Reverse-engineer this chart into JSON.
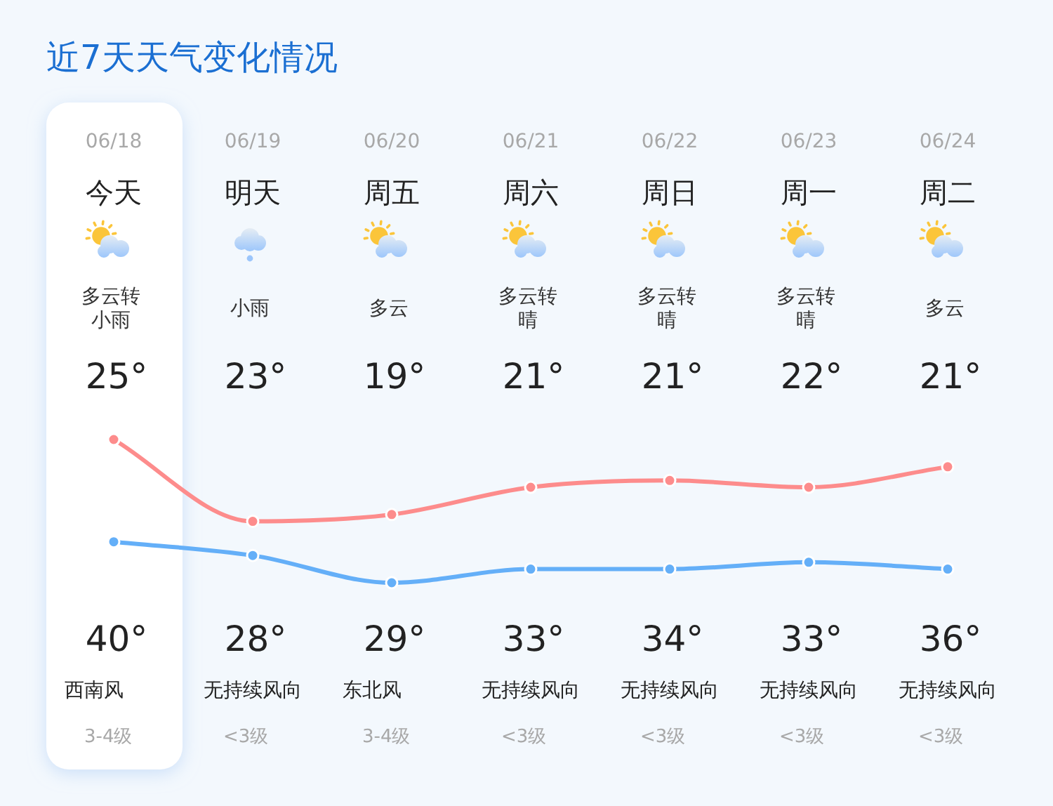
{
  "chart_data": {
    "type": "line",
    "title": "近7天天气变化情况",
    "categories": [
      "06/18",
      "06/19",
      "06/20",
      "06/21",
      "06/22",
      "06/23",
      "06/24"
    ],
    "series": [
      {
        "color": "#fd8c8c",
        "values": [
          40,
          28,
          29,
          33,
          34,
          33,
          36
        ],
        "value_labels": [
          "40°",
          "28°",
          "29°",
          "33°",
          "34°",
          "33°",
          "36°"
        ]
      },
      {
        "color": "#64aff8",
        "values": [
          25,
          23,
          19,
          21,
          21,
          22,
          21
        ],
        "value_labels": [
          "25°",
          "23°",
          "19°",
          "21°",
          "21°",
          "22°",
          "21°"
        ]
      }
    ],
    "marker": "circle",
    "bands": [
      {
        "axis": "x",
        "from": "06/18",
        "to": "06/18",
        "color": "#ffffff"
      }
    ],
    "annotations": [
      "今天",
      "多云转小雨",
      "西南风",
      "3-4级",
      "明天",
      "小雨",
      "无持续风向",
      "<3级",
      "周五",
      "多云",
      "东北风",
      "3-4级",
      "周六",
      "多云转晴",
      "无持续风向",
      "<3级",
      "周日",
      "多云转晴",
      "无持续风向",
      "<3级",
      "周一",
      "多云转晴",
      "无持续风向",
      "<3级",
      "周二",
      "多云",
      "无持续风向",
      "<3级"
    ]
  }
}
